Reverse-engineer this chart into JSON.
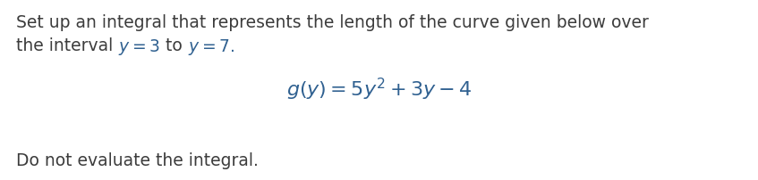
{
  "line1": "Set up an integral that represents the length of the curve given below over",
  "line2_prefix": "the interval ",
  "line2_math1": "y = 3",
  "line2_mid": " to ",
  "line2_math2": "y = 7.",
  "formula": "$g(y) = 5y^{2} + 3y - 4$",
  "footer": "Do not evaluate the integral.",
  "text_color": "#3c3c3c",
  "math_color": "#2f6090",
  "footer_color": "#3c3c3c",
  "bg_color": "#ffffff",
  "fig_width": 8.47,
  "fig_height": 2.02,
  "dpi": 100,
  "font_size_main": 13.5,
  "font_size_formula": 16,
  "font_size_footer": 13.5
}
